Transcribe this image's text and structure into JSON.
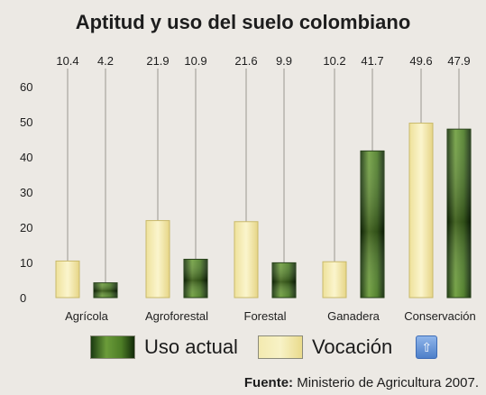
{
  "chart_data": {
    "type": "bar",
    "title": "Aptitud y uso del suelo colombiano",
    "categories": [
      "Agrícola",
      "Agroforestal",
      "Forestal",
      "Ganadera",
      "Conservación"
    ],
    "series": [
      {
        "name": "Vocación",
        "values": [
          10.4,
          21.9,
          21.6,
          10.2,
          49.6
        ],
        "value_labels": [
          "10.4",
          "21.9",
          "21.6",
          "10.2",
          "49.6"
        ]
      },
      {
        "name": "Uso actual",
        "values": [
          4.2,
          10.9,
          9.9,
          41.7,
          47.9
        ],
        "value_labels": [
          "4.2",
          "10.9",
          "9.9",
          "41.7",
          "47.9"
        ]
      }
    ],
    "y_ticks": [
      "0",
      "10",
      "20",
      "30",
      "40",
      "50",
      "60"
    ],
    "ylim": [
      0,
      60
    ],
    "grid": false,
    "legend_position": "bottom",
    "colors": {
      "Vocación": "#f5eaa6",
      "Uso actual": "#3f6e20"
    }
  },
  "legend": {
    "actual_label": "Uso actual",
    "vocacion_label": "Vocación"
  },
  "source": {
    "prefix": "Fuente:",
    "text": " Ministerio de Agricultura 2007."
  }
}
